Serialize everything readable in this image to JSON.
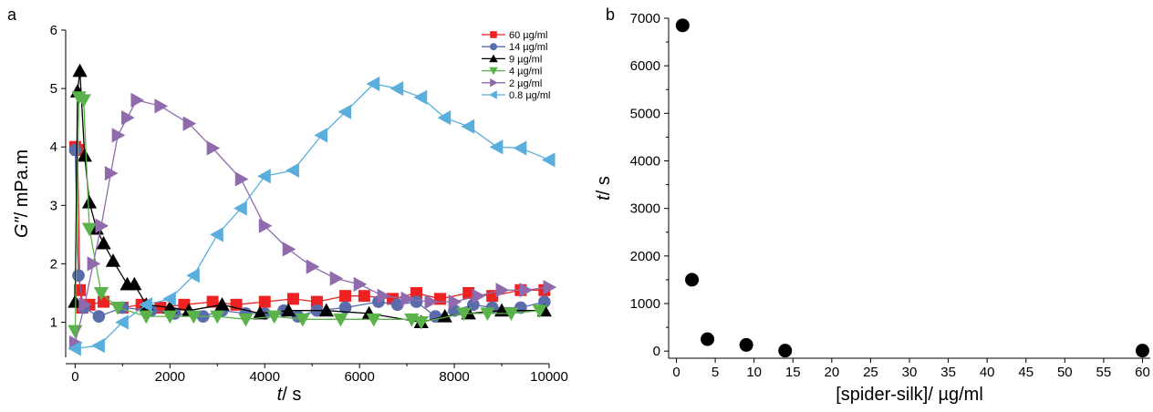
{
  "chart_data": [
    {
      "panel_label": "a",
      "type": "line",
      "ylabel_italic": "G\"",
      "ylabel_rest": "/ mPa.m",
      "xlabel_italic": "t",
      "xlabel_rest": "/ s",
      "xlim": [
        -200,
        10000
      ],
      "ylim": [
        0.4,
        6
      ],
      "xticks": [
        0,
        2000,
        4000,
        6000,
        8000,
        10000
      ],
      "yticks": [
        1,
        2,
        3,
        4,
        5,
        6
      ],
      "legend_position": "top-right",
      "series": [
        {
          "name": "60 µg/ml",
          "color": "#ee2222",
          "marker": "square",
          "points": [
            [
              0,
              4.0
            ],
            [
              50,
              3.95
            ],
            [
              100,
              1.55
            ],
            [
              150,
              1.25
            ],
            [
              300,
              1.3
            ],
            [
              600,
              1.35
            ],
            [
              1000,
              1.25
            ],
            [
              1400,
              1.3
            ],
            [
              1800,
              1.25
            ],
            [
              2300,
              1.3
            ],
            [
              2900,
              1.35
            ],
            [
              3400,
              1.3
            ],
            [
              4000,
              1.35
            ],
            [
              4600,
              1.4
            ],
            [
              5100,
              1.35
            ],
            [
              5700,
              1.45
            ],
            [
              6100,
              1.45
            ],
            [
              6700,
              1.4
            ],
            [
              7200,
              1.5
            ],
            [
              7700,
              1.4
            ],
            [
              8300,
              1.5
            ],
            [
              8800,
              1.45
            ],
            [
              9400,
              1.55
            ],
            [
              9900,
              1.55
            ]
          ]
        },
        {
          "name": "14 µg/ml",
          "color": "#5a6cab",
          "marker": "circle",
          "points": [
            [
              0,
              3.95
            ],
            [
              70,
              1.8
            ],
            [
              180,
              1.25
            ],
            [
              500,
              1.1
            ],
            [
              1000,
              1.25
            ],
            [
              1600,
              1.2
            ],
            [
              2100,
              1.15
            ],
            [
              2700,
              1.1
            ],
            [
              3100,
              1.2
            ],
            [
              3600,
              1.15
            ],
            [
              4000,
              1.15
            ],
            [
              4400,
              1.2
            ],
            [
              4700,
              1.1
            ],
            [
              5100,
              1.2
            ],
            [
              5700,
              1.25
            ],
            [
              6400,
              1.35
            ],
            [
              6800,
              1.3
            ],
            [
              7200,
              1.35
            ],
            [
              7600,
              1.1
            ],
            [
              8000,
              1.2
            ],
            [
              8400,
              1.3
            ],
            [
              8800,
              1.25
            ],
            [
              9400,
              1.25
            ],
            [
              9900,
              1.35
            ]
          ]
        },
        {
          "name": "9 µg/ml",
          "color": "#000000",
          "marker": "triangle-up",
          "points": [
            [
              0,
              1.35
            ],
            [
              50,
              4.95
            ],
            [
              100,
              5.3
            ],
            [
              200,
              3.85
            ],
            [
              300,
              3.05
            ],
            [
              450,
              2.6
            ],
            [
              600,
              2.35
            ],
            [
              800,
              2.05
            ],
            [
              1100,
              1.65
            ],
            [
              1250,
              1.65
            ],
            [
              1500,
              1.3
            ],
            [
              2000,
              1.25
            ],
            [
              2400,
              1.2
            ],
            [
              3100,
              1.3
            ],
            [
              3900,
              1.15
            ],
            [
              4500,
              1.2
            ],
            [
              5300,
              1.2
            ],
            [
              6200,
              1.15
            ],
            [
              7300,
              1.0
            ],
            [
              7800,
              1.1
            ],
            [
              8300,
              1.15
            ],
            [
              9000,
              1.2
            ],
            [
              9900,
              1.2
            ]
          ]
        },
        {
          "name": "4 µg/ml",
          "color": "#5ab34a",
          "marker": "triangle-down",
          "points": [
            [
              0,
              0.85
            ],
            [
              80,
              4.85
            ],
            [
              180,
              4.8
            ],
            [
              300,
              2.6
            ],
            [
              550,
              1.5
            ],
            [
              900,
              1.25
            ],
            [
              1500,
              1.1
            ],
            [
              2000,
              1.1
            ],
            [
              2500,
              1.1
            ],
            [
              3000,
              1.1
            ],
            [
              3600,
              1.05
            ],
            [
              4200,
              1.1
            ],
            [
              4800,
              1.05
            ],
            [
              5600,
              1.05
            ],
            [
              6300,
              1.05
            ],
            [
              7100,
              1.05
            ],
            [
              7300,
              1.0
            ],
            [
              8200,
              1.15
            ],
            [
              8700,
              1.15
            ],
            [
              9200,
              1.15
            ],
            [
              9800,
              1.2
            ]
          ]
        },
        {
          "name": "2 µg/ml",
          "color": "#8f6bad",
          "marker": "triangle-right",
          "points": [
            [
              0,
              0.65
            ],
            [
              200,
              1.3
            ],
            [
              380,
              2.0
            ],
            [
              550,
              2.65
            ],
            [
              750,
              3.55
            ],
            [
              900,
              4.2
            ],
            [
              1100,
              4.5
            ],
            [
              1300,
              4.8
            ],
            [
              1800,
              4.7
            ],
            [
              2400,
              4.4
            ],
            [
              2900,
              3.98
            ],
            [
              3500,
              3.45
            ],
            [
              4000,
              2.65
            ],
            [
              4500,
              2.25
            ],
            [
              5000,
              1.95
            ],
            [
              5500,
              1.75
            ],
            [
              6000,
              1.65
            ],
            [
              6500,
              1.45
            ],
            [
              7000,
              1.4
            ],
            [
              7500,
              1.35
            ],
            [
              8000,
              1.35
            ],
            [
              8500,
              1.45
            ],
            [
              9000,
              1.55
            ],
            [
              9500,
              1.55
            ],
            [
              10000,
              1.6
            ]
          ]
        },
        {
          "name": "0.8 µg/ml",
          "color": "#5aaedc",
          "marker": "triangle-left",
          "points": [
            [
              0,
              0.55
            ],
            [
              500,
              0.6
            ],
            [
              1000,
              1.0
            ],
            [
              1500,
              1.3
            ],
            [
              2000,
              1.4
            ],
            [
              2500,
              1.8
            ],
            [
              3000,
              2.5
            ],
            [
              3500,
              2.95
            ],
            [
              4000,
              3.5
            ],
            [
              4600,
              3.6
            ],
            [
              5200,
              4.2
            ],
            [
              5700,
              4.6
            ],
            [
              6300,
              5.08
            ],
            [
              6800,
              5.0
            ],
            [
              7300,
              4.85
            ],
            [
              7800,
              4.5
            ],
            [
              8300,
              4.35
            ],
            [
              8900,
              4.0
            ],
            [
              9400,
              3.98
            ],
            [
              10000,
              3.78
            ]
          ]
        }
      ]
    },
    {
      "panel_label": "b",
      "type": "scatter",
      "xlabel": "[spider-silk]/ µg/ml",
      "ylabel_italic": "t",
      "ylabel_rest": "/ s",
      "xlim": [
        -1,
        61
      ],
      "ylim": [
        -150,
        7000
      ],
      "xticks": [
        0,
        5,
        10,
        15,
        20,
        25,
        30,
        35,
        40,
        45,
        50,
        55,
        60
      ],
      "yticks": [
        0,
        1000,
        2000,
        3000,
        4000,
        5000,
        6000,
        7000
      ],
      "color": "#000000",
      "x": [
        0.8,
        2,
        4,
        9,
        14,
        60
      ],
      "y": [
        6850,
        1500,
        250,
        130,
        10,
        10
      ]
    }
  ]
}
